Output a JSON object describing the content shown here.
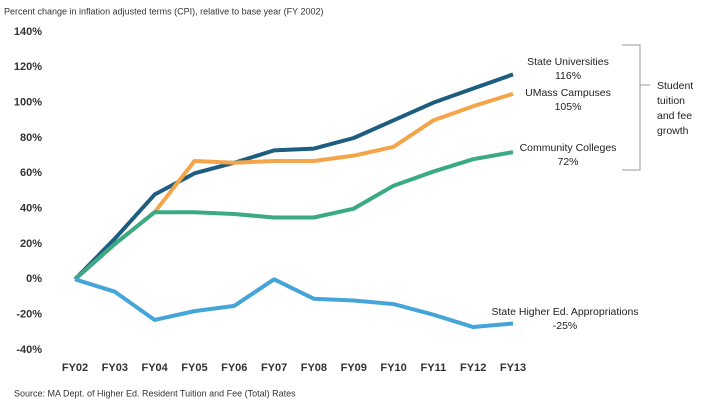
{
  "chart_data": {
    "type": "line",
    "subtitle": "Percent change in inflation adjusted terms (CPI), relative to base year (FY 2002)",
    "source": "Source: MA Dept. of Higher Ed. Resident Tuition and Fee (Total) Rates",
    "annotation": [
      "Student",
      "tuition",
      "and fee",
      "growth"
    ],
    "categories": [
      "FY02",
      "FY03",
      "FY04",
      "FY05",
      "FY06",
      "FY07",
      "FY08",
      "FY09",
      "FY10",
      "FY11",
      "FY12",
      "FY13"
    ],
    "ylim": [
      -40,
      140
    ],
    "yticks": [
      {
        "value": -40,
        "label": "-40%"
      },
      {
        "value": -20,
        "label": "-20%"
      },
      {
        "value": 0,
        "label": "0%"
      },
      {
        "value": 20,
        "label": "20%"
      },
      {
        "value": 40,
        "label": "40%"
      },
      {
        "value": 60,
        "label": "60%"
      },
      {
        "value": 80,
        "label": "80%"
      },
      {
        "value": 100,
        "label": "100%"
      },
      {
        "value": 120,
        "label": "120%"
      },
      {
        "value": 140,
        "label": "140%"
      }
    ],
    "series": [
      {
        "name": "State Universities",
        "color": "#1d5d80",
        "values": [
          0,
          23,
          48,
          60,
          66,
          73,
          74,
          80,
          90,
          100,
          108,
          116
        ],
        "value_labels": [
          null,
          null,
          null,
          null,
          null,
          null,
          null,
          null,
          null,
          null,
          null,
          "116%"
        ]
      },
      {
        "name": "UMass Campuses",
        "color": "#f4a54a",
        "values": [
          0,
          20,
          38,
          67,
          66,
          67,
          67,
          70,
          75,
          90,
          98,
          105
        ],
        "value_labels": [
          null,
          null,
          null,
          null,
          null,
          null,
          null,
          null,
          null,
          null,
          null,
          "105%"
        ]
      },
      {
        "name": "Community Colleges",
        "color": "#3aaa86",
        "values": [
          0,
          20,
          38,
          38,
          37,
          35,
          35,
          40,
          53,
          61,
          68,
          72
        ],
        "value_labels": [
          null,
          null,
          null,
          null,
          null,
          null,
          null,
          null,
          null,
          null,
          null,
          "72%"
        ]
      },
      {
        "name": "State Higher Ed. Appropriations",
        "color": "#45a5d9",
        "values": [
          0,
          -7,
          -23,
          -18,
          -15,
          0,
          -11,
          -12,
          -14,
          -20,
          -27,
          -25
        ],
        "value_labels": [
          null,
          null,
          null,
          null,
          null,
          null,
          null,
          null,
          null,
          null,
          null,
          "-25%"
        ]
      }
    ]
  }
}
